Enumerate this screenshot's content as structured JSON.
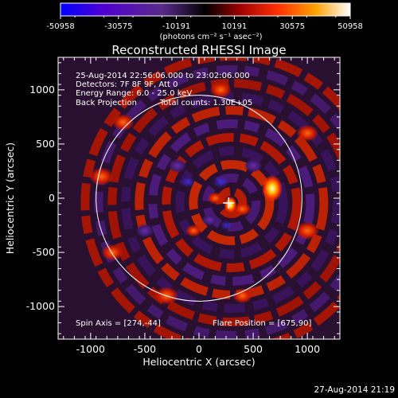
{
  "colorbar": {
    "tick_labels": [
      "-50958",
      "-30575",
      "-10191",
      "10191",
      "30575",
      "50958"
    ],
    "units": "(photons cm⁻² s⁻¹ asec⁻²)",
    "min": -50958,
    "max": 50958,
    "colors": [
      "#0000ff",
      "#5a00c8",
      "#7a2e9e",
      "#000000",
      "#b30000",
      "#ff4000",
      "#ff9f00",
      "#ffff80",
      "#ffffff"
    ]
  },
  "annotations": {
    "time_range": "25-Aug-2014 22:56:06.000 to 23:02:06.000",
    "detectors": "Detectors: 7F 8F 9F, Att 0",
    "energy_range": "Energy Range: 6.0 - 25.0 keV",
    "method": "Back Projection",
    "total_counts": "Total counts: 1.30E+05",
    "spin_axis": "Spin Axis = [274,-44]",
    "flare_position": "Flare Position = [675,90]"
  },
  "footer": {
    "timestamp": "27-Aug-2014 21:19"
  },
  "chart_data": {
    "type": "heatmap",
    "title": "Reconstructed RHESSI Image",
    "xlabel": "Heliocentric X (arcsec)",
    "ylabel": "Heliocentric Y (arcsec)",
    "xlim": [
      -1300,
      1300
    ],
    "ylim": [
      -1300,
      1300
    ],
    "x_ticks": [
      "-1000",
      "-500",
      "0",
      "500",
      "1000"
    ],
    "y_ticks": [
      "-1000",
      "-500",
      "0",
      "500",
      "1000"
    ],
    "x_tick_values": [
      -1000,
      -500,
      0,
      500,
      1000
    ],
    "y_tick_values": [
      -1000,
      -500,
      0,
      500,
      1000
    ],
    "solar_limb_radius_arcsec": 950,
    "crosshair_marker": [
      274,
      -44
    ],
    "bright_sources": [
      {
        "x": 675,
        "y": 90,
        "level": "max"
      },
      {
        "x": 290,
        "y": -60,
        "level": "high"
      }
    ]
  }
}
